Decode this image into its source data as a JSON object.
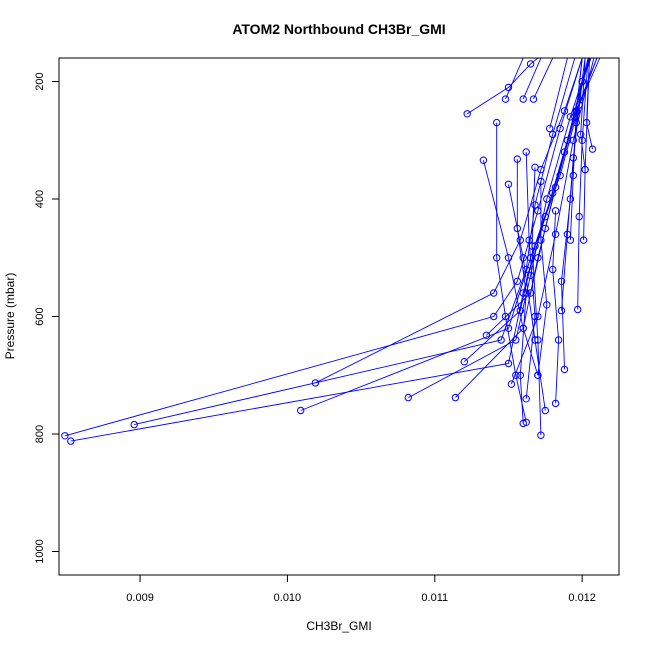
{
  "chart_data": {
    "type": "line",
    "title": "ATOM2 Northbound CH3Br_GMI",
    "xlabel": "CH3Br_GMI",
    "ylabel": "Pressure (mbar)",
    "xlim": [
      0.00845,
      0.01225
    ],
    "ylim": [
      1040,
      160
    ],
    "y_reversed": true,
    "grid": false,
    "legend": "none",
    "color": "#0000ff",
    "marker": "open-circle",
    "x_ticks": [
      0.009,
      0.01,
      0.011,
      0.012
    ],
    "x_tick_labels": [
      "0.009",
      "0.010",
      "0.011",
      "0.012"
    ],
    "y_ticks": [
      200,
      400,
      600,
      800,
      1000
    ],
    "y_tick_labels": [
      "200",
      "400",
      "600",
      "800",
      "1000"
    ],
    "series": [
      {
        "points": [
          [
            0.00849,
            803
          ],
          [
            0.0114,
            600
          ],
          [
            0.01156,
            540
          ],
          [
            0.0117,
            420
          ],
          [
            0.01185,
            280
          ],
          [
            0.012,
            160
          ]
        ]
      },
      {
        "points": [
          [
            0.00853,
            812
          ],
          [
            0.0115,
            680
          ],
          [
            0.0116,
            560
          ],
          [
            0.01175,
            430
          ],
          [
            0.0119,
            300
          ],
          [
            0.01205,
            160
          ]
        ]
      },
      {
        "points": [
          [
            0.00896,
            784
          ],
          [
            0.01145,
            640
          ],
          [
            0.01162,
            520
          ],
          [
            0.01168,
            410
          ],
          [
            0.0118,
            290
          ],
          [
            0.01195,
            160
          ]
        ]
      },
      {
        "points": [
          [
            0.01009,
            760
          ],
          [
            0.0115,
            620
          ],
          [
            0.01165,
            500
          ],
          [
            0.0118,
            390
          ],
          [
            0.01195,
            260
          ],
          [
            0.0121,
            160
          ]
        ]
      },
      {
        "points": [
          [
            0.01019,
            713
          ],
          [
            0.0114,
            560
          ],
          [
            0.01158,
            470
          ],
          [
            0.01172,
            350
          ],
          [
            0.01188,
            250
          ],
          [
            0.012,
            160
          ]
        ]
      },
      {
        "points": [
          [
            0.01082,
            738
          ],
          [
            0.01155,
            640
          ],
          [
            0.01165,
            530
          ],
          [
            0.01176,
            400
          ],
          [
            0.01192,
            260
          ],
          [
            0.01205,
            160
          ]
        ]
      },
      {
        "points": [
          [
            0.01114,
            738
          ],
          [
            0.0116,
            620
          ],
          [
            0.0117,
            500
          ],
          [
            0.01182,
            380
          ],
          [
            0.01196,
            250
          ],
          [
            0.0121,
            160
          ]
        ]
      },
      {
        "points": [
          [
            0.0112,
            677
          ],
          [
            0.01158,
            590
          ],
          [
            0.01168,
            480
          ],
          [
            0.01185,
            360
          ],
          [
            0.01198,
            240
          ],
          [
            0.01212,
            160
          ]
        ]
      },
      {
        "points": [
          [
            0.01122,
            255
          ],
          [
            0.0115,
            210
          ],
          [
            0.01165,
            170
          ],
          [
            0.0117,
            160
          ]
        ]
      },
      {
        "points": [
          [
            0.01133,
            334
          ],
          [
            0.0115,
            500
          ],
          [
            0.0116,
            620
          ],
          [
            0.0117,
            700
          ]
        ]
      },
      {
        "points": [
          [
            0.01135,
            632
          ],
          [
            0.01165,
            560
          ],
          [
            0.01175,
            450
          ],
          [
            0.01188,
            320
          ],
          [
            0.012,
            200
          ],
          [
            0.01206,
            160
          ]
        ]
      },
      {
        "points": [
          [
            0.01142,
            270
          ],
          [
            0.01142,
            500
          ],
          [
            0.01148,
            600
          ],
          [
            0.01155,
            700
          ],
          [
            0.01162,
            780
          ]
        ]
      },
      {
        "points": [
          [
            0.01148,
            230
          ],
          [
            0.0116,
            160
          ]
        ]
      },
      {
        "points": [
          [
            0.0115,
            375
          ],
          [
            0.0116,
            500
          ],
          [
            0.01168,
            640
          ],
          [
            0.01175,
            760
          ]
        ]
      },
      {
        "points": [
          [
            0.01152,
            715
          ],
          [
            0.0117,
            600
          ],
          [
            0.01182,
            460
          ],
          [
            0.01194,
            300
          ],
          [
            0.01208,
            160
          ]
        ]
      },
      {
        "points": [
          [
            0.01156,
            332
          ],
          [
            0.01156,
            450
          ],
          [
            0.01162,
            560
          ],
          [
            0.01158,
            700
          ],
          [
            0.0116,
            782
          ]
        ]
      },
      {
        "points": [
          [
            0.0116,
            230
          ],
          [
            0.01172,
            160
          ]
        ]
      },
      {
        "points": [
          [
            0.01162,
            320
          ],
          [
            0.01164,
            470
          ],
          [
            0.01168,
            600
          ],
          [
            0.01162,
            740
          ]
        ]
      },
      {
        "points": [
          [
            0.01167,
            230
          ],
          [
            0.0118,
            160
          ]
        ]
      },
      {
        "points": [
          [
            0.01168,
            346
          ],
          [
            0.01166,
            480
          ],
          [
            0.0117,
            640
          ],
          [
            0.01172,
            802
          ]
        ]
      },
      {
        "points": [
          [
            0.01172,
            370
          ],
          [
            0.01172,
            470
          ],
          [
            0.01176,
            580
          ],
          [
            0.0117,
            700
          ]
        ]
      },
      {
        "points": [
          [
            0.01178,
            280
          ],
          [
            0.0119,
            160
          ]
        ]
      },
      {
        "points": [
          [
            0.01182,
            420
          ],
          [
            0.0118,
            520
          ],
          [
            0.01184,
            640
          ],
          [
            0.01182,
            748
          ]
        ]
      },
      {
        "points": [
          [
            0.01186,
            590
          ],
          [
            0.0119,
            460
          ],
          [
            0.01194,
            330
          ],
          [
            0.012,
            200
          ],
          [
            0.01204,
            160
          ]
        ]
      },
      {
        "points": [
          [
            0.01188,
            690
          ],
          [
            0.01186,
            540
          ],
          [
            0.01192,
            400
          ],
          [
            0.01196,
            270
          ],
          [
            0.01202,
            160
          ]
        ]
      },
      {
        "points": [
          [
            0.01192,
            470
          ],
          [
            0.01194,
            360
          ],
          [
            0.01196,
            250
          ],
          [
            0.012,
            160
          ]
        ]
      },
      {
        "points": [
          [
            0.01197,
            588
          ],
          [
            0.01198,
            430
          ],
          [
            0.012,
            300
          ],
          [
            0.01204,
            160
          ]
        ]
      },
      {
        "points": [
          [
            0.01201,
            470
          ],
          [
            0.01202,
            350
          ],
          [
            0.01205,
            160
          ]
        ]
      },
      {
        "points": [
          [
            0.01207,
            315
          ],
          [
            0.01203,
            270
          ],
          [
            0.01205,
            160
          ]
        ]
      },
      {
        "points": [
          [
            0.01202,
            350
          ],
          [
            0.01199,
            290
          ],
          [
            0.01202,
            160
          ]
        ]
      },
      {
        "points": [
          [
            0.01196,
            252
          ],
          [
            0.012,
            160
          ]
        ]
      }
    ]
  }
}
